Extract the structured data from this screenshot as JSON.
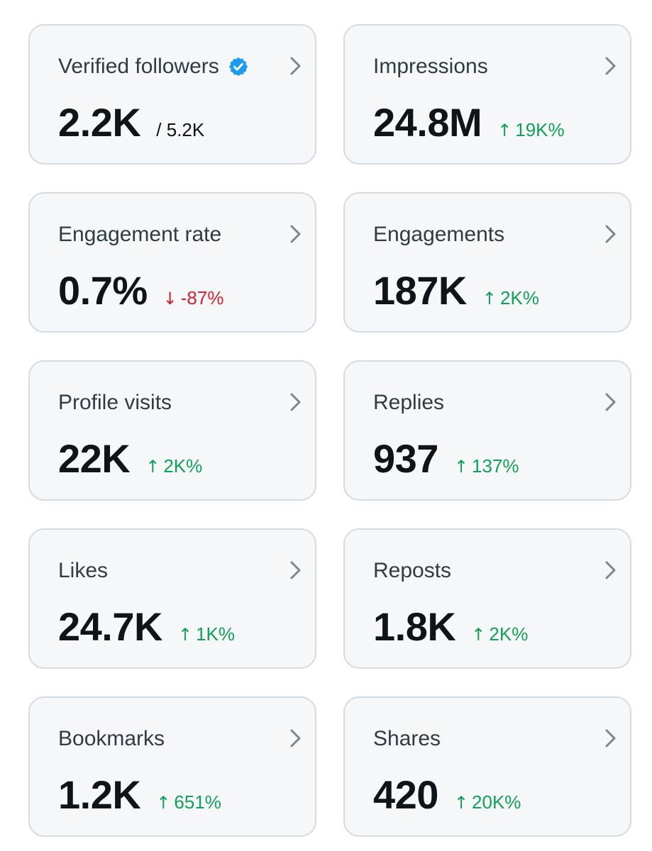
{
  "colors": {
    "card_background": "#f5f7f8",
    "card_border": "#d3dce2",
    "positive": "#12a05a",
    "negative": "#d4202f",
    "verified_badge": "#1d9bf0",
    "chevron": "#7a8790"
  },
  "metrics": [
    {
      "title": "Verified followers",
      "value": "2.2K",
      "suffix": "/ 5.2K",
      "verified_icon": "verified-badge-icon"
    },
    {
      "title": "Impressions",
      "value": "24.8M",
      "delta": {
        "direction": "up",
        "arrow": "↑",
        "text": "19K%"
      }
    },
    {
      "title": "Engagement rate",
      "value": "0.7%",
      "delta": {
        "direction": "down",
        "arrow": "↓",
        "text": "-87%"
      }
    },
    {
      "title": "Engagements",
      "value": "187K",
      "delta": {
        "direction": "up",
        "arrow": "↑",
        "text": "2K%"
      }
    },
    {
      "title": "Profile visits",
      "value": "22K",
      "delta": {
        "direction": "up",
        "arrow": "↑",
        "text": "2K%"
      }
    },
    {
      "title": "Replies",
      "value": "937",
      "delta": {
        "direction": "up",
        "arrow": "↑",
        "text": "137%"
      }
    },
    {
      "title": "Likes",
      "value": "24.7K",
      "delta": {
        "direction": "up",
        "arrow": "↑",
        "text": "1K%"
      }
    },
    {
      "title": "Reposts",
      "value": "1.8K",
      "delta": {
        "direction": "up",
        "arrow": "↑",
        "text": "2K%"
      }
    },
    {
      "title": "Bookmarks",
      "value": "1.2K",
      "delta": {
        "direction": "up",
        "arrow": "↑",
        "text": "651%"
      }
    },
    {
      "title": "Shares",
      "value": "420",
      "delta": {
        "direction": "up",
        "arrow": "↑",
        "text": "20K%"
      }
    }
  ]
}
